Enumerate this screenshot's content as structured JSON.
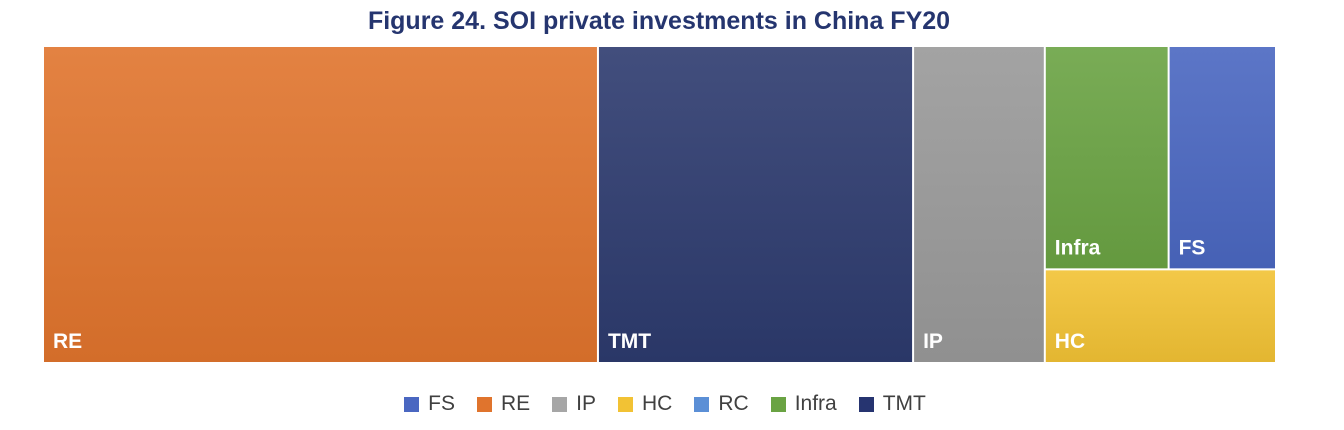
{
  "title": "Figure 24. SOI private investments in China FY20",
  "chart_data": {
    "type": "treemap",
    "title": "Figure 24. SOI private investments in China FY20",
    "total": 100,
    "nodes": [
      {
        "name": "RE",
        "value": 45.0,
        "color": "#e0742d",
        "label_color": "#ffffff"
      },
      {
        "name": "TMT",
        "value": 25.6,
        "color": "#2d3a6e",
        "label_color": "#ffffff"
      },
      {
        "name": "IP",
        "value": 10.7,
        "color": "#999999",
        "label_color": "#ffffff"
      },
      {
        "name": "Infra",
        "value": 7.1,
        "color": "#6aa343",
        "label_color": "#ffffff"
      },
      {
        "name": "FS",
        "value": 6.1,
        "color": "#4a67c1",
        "label_color": "#ffffff"
      },
      {
        "name": "HC",
        "value": 5.5,
        "color": "#f2c234",
        "label_color": "#ffffff"
      },
      {
        "name": "RC",
        "value": 0,
        "color": "#5b8fd6",
        "label_color": "#ffffff"
      }
    ],
    "legend": [
      {
        "label": "FS",
        "color": "#4a67c1"
      },
      {
        "label": "RE",
        "color": "#e0742d"
      },
      {
        "label": "IP",
        "color": "#a6a6a6"
      },
      {
        "label": "HC",
        "color": "#f2c234"
      },
      {
        "label": "RC",
        "color": "#5b8fd6"
      },
      {
        "label": "Infra",
        "color": "#6aa343"
      },
      {
        "label": "TMT",
        "color": "#263470"
      }
    ],
    "legend_position": "bottom"
  }
}
